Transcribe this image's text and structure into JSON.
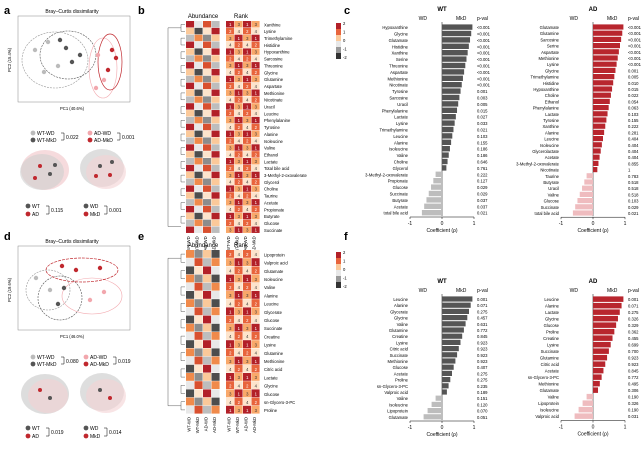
{
  "panels": {
    "a": {
      "label": "a",
      "title": "Bray–Curtis dissimilarity",
      "xlabel": "PC1 (40.6%)",
      "ylabel": "PC2 (15.4%)",
      "legend_top": [
        "WT-WD",
        "WT-MkD",
        "AD-WD",
        "AD-MkD"
      ],
      "pval_1": "0.022",
      "pval_2": "0.001",
      "legend_bottom": [
        "WT",
        "AD",
        "WD",
        "MkD"
      ],
      "pval_3": "0.115",
      "pval_4": "0.001"
    },
    "b": {
      "label": "b",
      "abundance": "Abundance",
      "rank": "Rank",
      "colorbar": [
        "2",
        "1",
        "0",
        "-1",
        "-2"
      ],
      "columns": [
        "WT-WD",
        "WT-MkD",
        "AD-WD",
        "AD-MkD"
      ],
      "rows": [
        "Xanthine",
        "Lysine",
        "Trimethylamine",
        "Histidine",
        "Hypoxanthine",
        "Sarcosine",
        "Threonine",
        "Glycine",
        "Glutamine",
        "Aspartate",
        "Methionine",
        "Nicotinate",
        "Uracil",
        "Leucine",
        "Phenylalanine",
        "Tyrosine",
        "Alanine",
        "Isoleucine",
        "Valine",
        "Ethanol",
        "Lactate",
        "Total bile acid",
        "3-Methyl-2-oxovalerate",
        "Glycerol",
        "Choline",
        "Taurine",
        "Acetate",
        "Propionate",
        "Butyrate",
        "Glucose",
        "Succinate"
      ]
    },
    "c": {
      "label": "c",
      "wt": {
        "title": "WT",
        "wd": "WD",
        "mkd": "MkD",
        "pval_header": "p-val",
        "xlabel": "Coefficient (ρ)",
        "ticks": [
          "-1",
          "0",
          "1"
        ],
        "rows": [
          "Hypoxanthine",
          "Glycine",
          "Glutamate",
          "Histidine",
          "Xanthine",
          "Serine",
          "Threonine",
          "Aspartate",
          "Methionine",
          "Nicotinate",
          "Tyrosine",
          "Sarcosine",
          "Uracil",
          "Phenylalanine",
          "Lactate",
          "Lysine",
          "Trimethylamine",
          "Leucine",
          "Alanine",
          "Isoleucine",
          "Valine",
          "Choline",
          "Glycerol",
          "3-Methyl-2-oxovalerate",
          "Propionate",
          "Glucose",
          "Succinate",
          "Butyrate",
          "Acetate",
          "total bile acid"
        ],
        "pvals": [
          "<0.001",
          "<0.001",
          "<0.001",
          "<0.001",
          "<0.001",
          "<0.001",
          "<0.001",
          "<0.001",
          "<0.001",
          "<0.001",
          "0.001",
          "0.003",
          "0.005",
          "0.015",
          "0.027",
          "0.033",
          "0.021",
          "0.103",
          "0.155",
          "0.186",
          "0.186",
          "0.646",
          "0.761",
          "0.222",
          "0.127",
          "0.029",
          "0.029",
          "0.037",
          "0.037",
          "0.021"
        ]
      },
      "ad": {
        "title": "AD",
        "wd": "WD",
        "mkd": "MkD",
        "pval_header": "p-val",
        "xlabel": "Coefficient (ρ)",
        "ticks": [
          "-1",
          "0",
          "1"
        ],
        "rows": [
          "Glutamate",
          "Glutamine",
          "Sarcosine",
          "Serine",
          "Aspartate",
          "Methionine",
          "Lysine",
          "Glycine",
          "Trimethylamine",
          "Histidine",
          "Hypoxanthine",
          "Choline",
          "Ethanol",
          "Phenylalanine",
          "Lactate",
          "Tyrosine",
          "Xanthine",
          "Alanine",
          "Leucine",
          "Isoleucine",
          "Glycerolactate",
          "Acetate",
          "3-Methyl-2-oxovalerate",
          "Nicotinate",
          "Taurine",
          "Butyrate",
          "Uracil",
          "Valine",
          "Glucose",
          "Succinate",
          "total bile acid"
        ],
        "pvals": [
          "<0.001",
          "<0.001",
          "<0.001",
          "<0.001",
          "<0.001",
          "<0.001",
          "<0.001",
          "0.001",
          "0.005",
          "0.010",
          "0.015",
          "0.022",
          "0.054",
          "0.063",
          "0.103",
          "0.155",
          "0.222",
          "0.281",
          "0.404",
          "0.404",
          "0.404",
          "0.404",
          "0.855",
          "1",
          "0.783",
          "0.518",
          "0.518",
          "0.518",
          "0.103",
          "0.029",
          "0.021"
        ]
      }
    },
    "d": {
      "label": "d",
      "title": "Bray–Curtis dissimilarity",
      "xlabel": "PC1 (46.0%)",
      "ylabel": "PC2 (19.6%)",
      "legend_top": [
        "WT-WD",
        "WT-MkD",
        "AD-WD",
        "AD-MkD"
      ],
      "pval_1": "0.080",
      "pval_2": "0.019",
      "legend_bottom": [
        "WT",
        "AD",
        "WD",
        "MkD"
      ],
      "pval_3": "0.019",
      "pval_4": "0.014"
    },
    "e": {
      "label": "e",
      "abundance": "Abundance",
      "rank": "Rank",
      "colorbar": [
        "2",
        "1",
        "0",
        "-1",
        "-2"
      ],
      "columns": [
        "WT-WD",
        "WT-MkD",
        "AD-WD",
        "AD-MkD"
      ],
      "rows": [
        "Lipoprotein",
        "Valproic acid",
        "Glutamate",
        "Isoleucine",
        "Valine",
        "Alanine",
        "Leucine",
        "Glycerate",
        "Glucose",
        "Succinate",
        "Creatine",
        "Lysine",
        "Glutamine",
        "Methionine",
        "Citric acid",
        "Lactate",
        "Glycine",
        "Glucose",
        "sn-Glycero-3-PC",
        "Proline"
      ]
    },
    "f": {
      "label": "f",
      "wt": {
        "title": "WT",
        "wd": "WD",
        "mkd": "MkD",
        "pval_header": "p-val",
        "xlabel": "Coefficient (ρ)",
        "ticks": [
          "-1",
          "0",
          "1"
        ],
        "rows": [
          "Leucine",
          "Alanine",
          "Glycerate",
          "Glycine",
          "Valine",
          "Glutamine",
          "Creatine",
          "Lysine",
          "Citric acid",
          "Succinate",
          "Methionine",
          "Glucose",
          "Acetate",
          "Proline",
          "sn-Glycero-3-PC",
          "Valproic acid",
          "Valine",
          "Isoleucine",
          "Lipoprotein",
          "Glutamate"
        ],
        "pvals": [
          "0.001",
          "0.071",
          "0.275",
          "0.457",
          "0.631",
          "0.772",
          "0.845",
          "0.923",
          "0.923",
          "0.923",
          "0.923",
          "0.407",
          "0.275",
          "0.275",
          "0.235",
          "0.189",
          "0.151",
          "0.120",
          "0.070",
          "0.051"
        ]
      },
      "ad": {
        "title": "AD",
        "wd": "WD",
        "mkd": "MkD",
        "pval_header": "p-val",
        "xlabel": "Coefficient (ρ)",
        "ticks": [
          "-1",
          "0",
          "1"
        ],
        "rows": [
          "Leucine",
          "Alanine",
          "Lactate",
          "Glycine",
          "Glucose",
          "Proline",
          "Creatine",
          "Lysine",
          "Succinate",
          "Glutamine",
          "Citric acid",
          "Acetate",
          "sn-Glycero-3-PC",
          "Methionine",
          "Glutamate",
          "Valine",
          "Lipoprotein",
          "Isoleucine",
          "Valproic acid"
        ],
        "pvals": [
          "0.001",
          "0.071",
          "0.275",
          "0.326",
          "0.329",
          "0.362",
          "0.455",
          "0.699",
          "0.700",
          "0.923",
          "0.923",
          "0.845",
          "0.772",
          "0.495",
          "0.306",
          "0.190",
          "0.326",
          "0.190",
          "0.031"
        ]
      }
    }
  }
}
